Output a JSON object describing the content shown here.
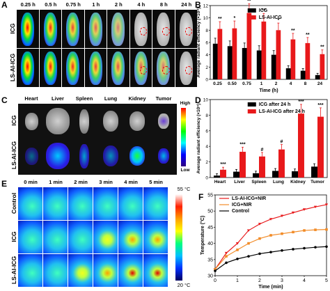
{
  "panels": {
    "A": {
      "label": "A",
      "times": [
        "0.25 h",
        "0.5 h",
        "0.75 h",
        "1 h",
        "2 h",
        "4 h",
        "8 h",
        "24 h"
      ],
      "rows": [
        "ICG",
        "LS-AI-ICG"
      ]
    },
    "B": {
      "label": "B"
    },
    "C": {
      "label": "C",
      "organs": [
        "Heart",
        "Liver",
        "Spleen",
        "Lung",
        "Kidney",
        "Tumor"
      ],
      "rows": [
        "ICG",
        "LS-AI-ICG"
      ],
      "scale_high": "High",
      "scale_low": "Low"
    },
    "D": {
      "label": "D"
    },
    "E": {
      "label": "E",
      "times": [
        "0 min",
        "1 min",
        "2 min",
        "3 min",
        "4 min",
        "5 min"
      ],
      "rows": [
        "Control",
        "ICG",
        "LS-AI-ICG"
      ],
      "scale_high": "55 °C",
      "scale_low": "20 °C"
    },
    "F": {
      "label": "F"
    }
  },
  "chart_data": [
    {
      "panel": "B",
      "type": "bar",
      "ylabel": "Average radiant efficiency (×10⁹)",
      "xlabel": "Time (h)",
      "categories": [
        "0.25",
        "0.50",
        "0.75",
        "1",
        "2",
        "4",
        "8",
        "24"
      ],
      "ylim": [
        0,
        12
      ],
      "yticks": [
        0,
        2,
        4,
        6,
        8,
        10,
        12
      ],
      "series": [
        {
          "name": "ICG",
          "color": "#000000",
          "values": [
            5.8,
            5.4,
            5.1,
            4.7,
            4.0,
            1.8,
            1.4,
            0.7
          ]
        },
        {
          "name": "LS-AI-ICG",
          "color": "#e8191b",
          "values": [
            8.2,
            8.3,
            10.8,
            9.4,
            8.0,
            6.5,
            5.9,
            4.1
          ]
        }
      ],
      "annotations": [
        "**",
        "*",
        "**",
        "**",
        "*",
        "**",
        "**",
        "**"
      ]
    },
    {
      "panel": "D",
      "type": "bar",
      "ylabel": "Average radiant efficiency (×10⁹)",
      "xlabel": "",
      "categories": [
        "Heart",
        "Liver",
        "Spleen",
        "Lung",
        "Kidney",
        "Tumor"
      ],
      "ylim": [
        0,
        10
      ],
      "yticks": [
        0,
        2,
        4,
        6,
        8,
        10
      ],
      "series": [
        {
          "name": "ICG after 24 h",
          "color": "#000000",
          "values": [
            0.25,
            0.75,
            0.55,
            0.85,
            0.8,
            1.4
          ]
        },
        {
          "name": "LS-AI-ICG after 24 h",
          "color": "#e8191b",
          "values": [
            1.0,
            3.3,
            2.7,
            3.6,
            8.2,
            7.8
          ]
        }
      ],
      "annotations": [
        "***",
        "***",
        "#",
        "#",
        "***",
        "***"
      ]
    },
    {
      "panel": "F",
      "type": "line",
      "ylabel": "Temperature (°C)",
      "xlabel": "Time (min)",
      "xlim": [
        0,
        5
      ],
      "ylim": [
        30,
        55
      ],
      "xticks": [
        0,
        1,
        2,
        3,
        4,
        5
      ],
      "yticks": [
        30,
        35,
        40,
        45,
        50,
        55
      ],
      "x": [
        0,
        0.5,
        1,
        1.5,
        2,
        2.5,
        3,
        3.5,
        4,
        4.5,
        5
      ],
      "series": [
        {
          "name": "LS-AI-ICG+NIR",
          "color": "#e8191b",
          "marker": "triangle-down",
          "values": [
            32,
            37,
            40,
            44,
            46,
            47.5,
            48.5,
            49.5,
            50.5,
            51.3,
            52
          ]
        },
        {
          "name": "ICG+NIR",
          "color": "#f28c28",
          "marker": "square",
          "values": [
            32,
            36,
            38,
            40,
            41.5,
            42.5,
            43,
            43.5,
            44,
            44.2,
            44.3
          ]
        },
        {
          "name": "Control",
          "color": "#000000",
          "marker": "circle",
          "values": [
            31.5,
            34,
            35.2,
            36,
            36.8,
            37.3,
            37.8,
            38.2,
            38.5,
            38.8,
            39
          ]
        }
      ]
    }
  ]
}
